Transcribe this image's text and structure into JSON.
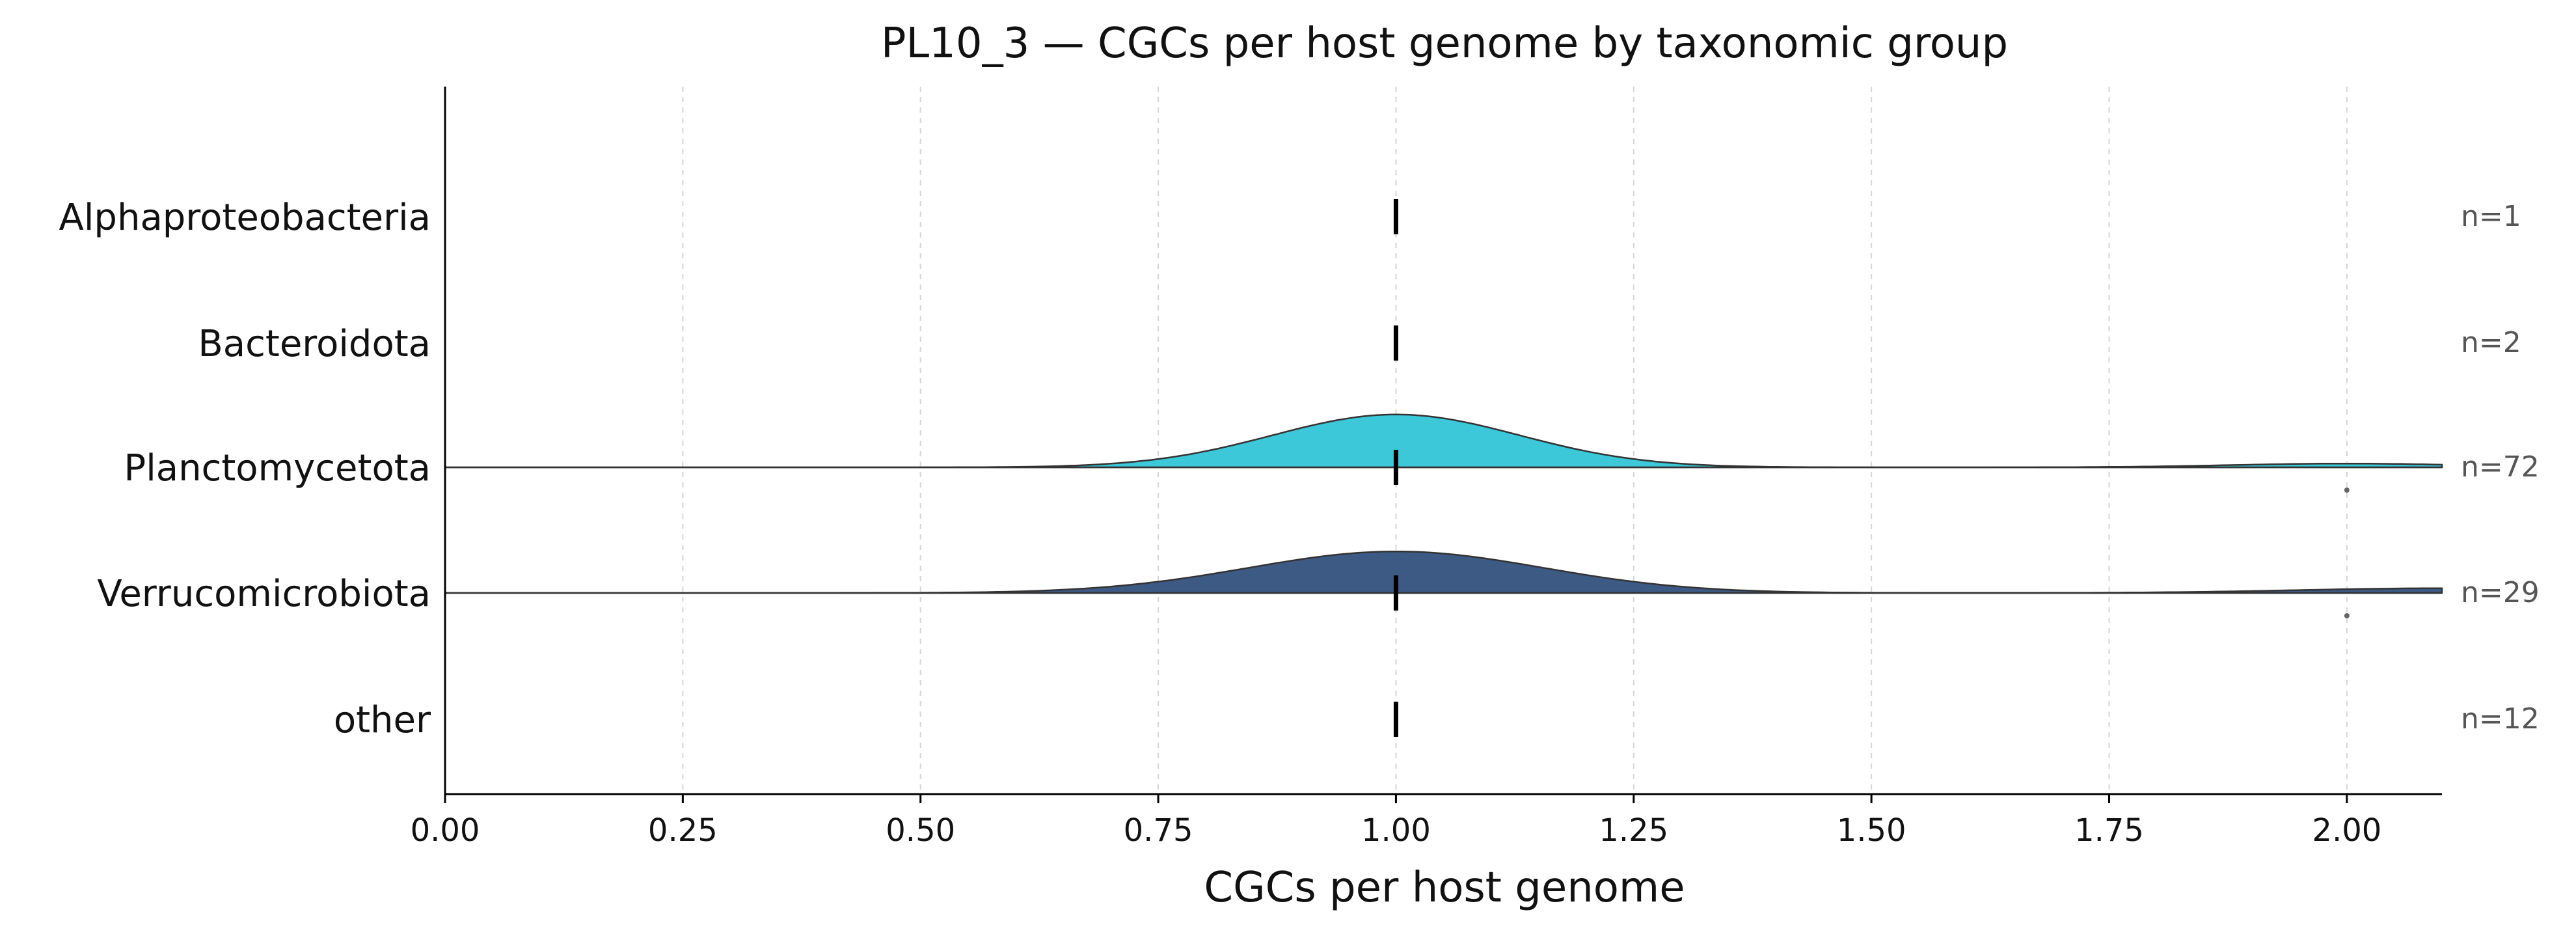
{
  "chart_data": {
    "type": "ridgeline",
    "title": "PL10_3 — CGCs per host genome by taxonomic group",
    "xlabel": "CGCs per host genome",
    "ylabel": "",
    "xlim": [
      0,
      2.1
    ],
    "xticks": [
      "0.00",
      "0.25",
      "0.50",
      "0.75",
      "1.00",
      "1.25",
      "1.50",
      "1.75",
      "2.00"
    ],
    "grid": "vertical-dashed",
    "categories": [
      "Alphaproteobacteria",
      "Bacteroidota",
      "Planctomycetota",
      "Verrucomicrobiota",
      "other"
    ],
    "n_labels": [
      "n=1",
      "n=2",
      "n=72",
      "n=29",
      "n=12"
    ],
    "medians": [
      1.0,
      1.0,
      1.0,
      1.0,
      1.0
    ],
    "series": [
      {
        "name": "Alphaproteobacteria",
        "has_density": false,
        "outliers": []
      },
      {
        "name": "Bacteroidota",
        "has_density": false,
        "outliers": []
      },
      {
        "name": "Planctomycetota",
        "has_density": true,
        "color": "#3cc8d8",
        "mean": 1.0,
        "sd": 0.13,
        "peak": 0.28,
        "tail_center": 2.0,
        "tail_sd": 0.12,
        "tail_peak": 0.02,
        "outliers": [
          2.0
        ]
      },
      {
        "name": "Verrucomicrobiota",
        "has_density": true,
        "color": "#3d5a85",
        "mean": 1.0,
        "sd": 0.155,
        "peak": 0.22,
        "tail_center": 2.1,
        "tail_sd": 0.15,
        "tail_peak": 0.025,
        "outliers": [
          2.0
        ]
      },
      {
        "name": "other",
        "has_density": false,
        "outliers": []
      }
    ]
  }
}
